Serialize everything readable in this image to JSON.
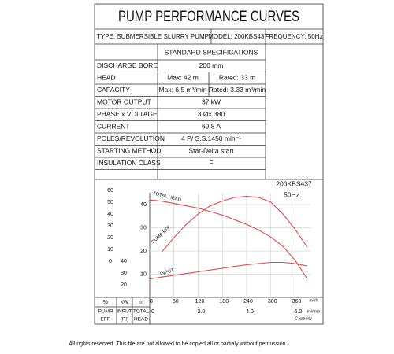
{
  "header": {
    "title": "PUMP PERFORMANCE CURVES",
    "type": "TYPE: SUBMERSIBLE  SLURRY  PUMP",
    "model": "MODEL: 200KBS437",
    "frequency": "FREQUENCY: 50Hz"
  },
  "specs": {
    "title": "STANDARD SPECIFICATIONS",
    "rows": [
      [
        "DISCHARGE BORE",
        "200      mm"
      ],
      [
        "HEAD",
        "Max: 42 m",
        "Rated: 33 m"
      ],
      [
        "CAPACITY",
        "Max: 6.5 m³/min",
        "Rated: 3.33 m³/min"
      ],
      [
        "MOTOR OUTPUT",
        "37  kW"
      ],
      [
        "PHASE x VOLTAGE",
        "3 Øx 380"
      ],
      [
        "CURRENT",
        "69.8 A"
      ],
      [
        "POLES/REVOLUTION",
        "4 P/ S.S.1450 min⁻¹"
      ],
      [
        "STARTING METHOD",
        "Star-Delta start"
      ],
      [
        "INSULATION CLASS",
        "F"
      ]
    ]
  },
  "chart_data": {
    "type": "line",
    "model_label": "200KBS437",
    "frequency_label": "50Hz",
    "x": [
      0,
      30,
      60,
      90,
      120,
      150,
      180,
      210,
      240,
      270,
      300,
      330,
      360,
      390
    ],
    "xlim": [
      0,
      400
    ],
    "xticks": [
      0,
      60,
      120,
      180,
      240,
      300,
      360
    ],
    "x_unit": "m³/h",
    "x2lim": [
      0,
      6.67
    ],
    "x2ticks": [
      0,
      {
        "value": 2,
        "label": "2.0"
      },
      {
        "value": 4,
        "label": "4.0"
      },
      {
        "value": 6,
        "label": "6.0"
      }
    ],
    "x2_unit": "m³/min",
    "x_caption": "Capacity",
    "ylim": [
      0,
      47.5
    ],
    "yticks": [
      10,
      20,
      30,
      40
    ],
    "y_unit": "m",
    "y_label": [
      "TOTAL",
      "HEAD"
    ],
    "y2lim": [
      -30.7,
      62.7
    ],
    "y2ticks": [
      0,
      10,
      20,
      30,
      40,
      50,
      60
    ],
    "y2_unit": "%",
    "y2_label": [
      "PUMP",
      "EFF."
    ],
    "y3lim": [
      9.3,
      102.7
    ],
    "y3ticks": [
      20,
      30,
      40
    ],
    "y3_unit": "kW",
    "y3_label": [
      "INPUT",
      "(PI)"
    ],
    "grid": true,
    "series": [
      {
        "name": "TOTAL HEAD",
        "axis": "y",
        "color": "#e0474c",
        "values": [
          42,
          41.5,
          40.5,
          39.5,
          38.5,
          37,
          35.5,
          33.5,
          31.5,
          29,
          26,
          22,
          16,
          8
        ]
      },
      {
        "name": "PUMP EFF.",
        "axis": "y2",
        "color": "#e0474c",
        "values": [
          null,
          8,
          20,
          31,
          40,
          47,
          51,
          54,
          55,
          54,
          50,
          40,
          27,
          12
        ]
      },
      {
        "name": "INPUT",
        "axis": "y3",
        "color": "#e0474c",
        "values": [
          25,
          26.5,
          28,
          29.5,
          31,
          32.5,
          34,
          35.5,
          37,
          38,
          39,
          39,
          38,
          36
        ]
      }
    ]
  },
  "footer": "All rights reserved. This file are not allowed to be copied all or partialy without permission."
}
